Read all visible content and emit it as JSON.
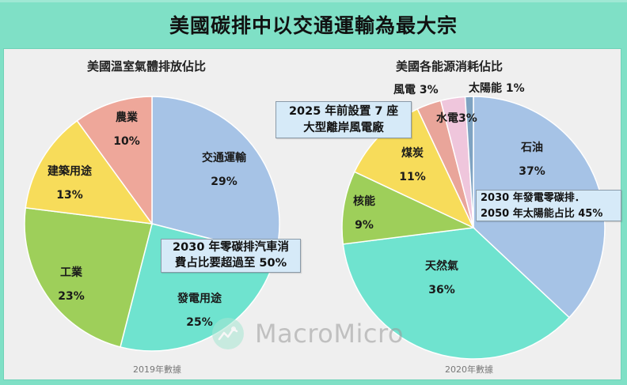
{
  "header": {
    "title": "美國碳排中以交通運輸為最大宗"
  },
  "chart_data": [
    {
      "type": "pie",
      "title": "美國溫室氣體排放佔比",
      "footnote": "2019年數據",
      "start_angle_deg": 0,
      "direction": "clockwise",
      "categories": [
        "交通運輸",
        "發電用途",
        "工業",
        "建築用途",
        "農業"
      ],
      "values": [
        29,
        25,
        23,
        13,
        10
      ],
      "colors": [
        "#a6c3e6",
        "#6fe3cf",
        "#9ecf5a",
        "#f7dc5a",
        "#eea79a"
      ],
      "labels": [
        "29%",
        "25%",
        "23%",
        "13%",
        "10%"
      ],
      "annotation": "2030 年零碳排汽車消\n費占比要超過至 50%"
    },
    {
      "type": "pie",
      "title": "美國各能源消耗佔比",
      "footnote": "2020年數據",
      "start_angle_deg": 0,
      "direction": "clockwise",
      "categories": [
        "石油",
        "天然氣",
        "核能",
        "煤炭",
        "風電",
        "水電",
        "太陽能"
      ],
      "values": [
        37,
        36,
        9,
        11,
        3,
        3,
        1
      ],
      "colors": [
        "#a6c3e6",
        "#6fe3cf",
        "#9ecf5a",
        "#f7dc5a",
        "#e9a59a",
        "#efc6dc",
        "#7fa3c2"
      ],
      "labels": [
        "37%",
        "36%",
        "9%",
        "11%",
        "3%",
        "3%",
        "1%"
      ],
      "annotations": [
        "2025 年前設置 7 座\n大型離岸風電廠",
        "2030 年發電零碳排．\n2050 年太陽能占比 45%"
      ]
    }
  ],
  "left": {
    "title": "美國溫室氣體排放佔比",
    "footnote": "2019年數據",
    "labels": {
      "transport": {
        "name": "交通運輸",
        "pct": "29%"
      },
      "power": {
        "name": "發電用途",
        "pct": "25%"
      },
      "industry": {
        "name": "工業",
        "pct": "23%"
      },
      "building": {
        "name": "建築用途",
        "pct": "13%"
      },
      "agriculture": {
        "name": "農業",
        "pct": "10%"
      }
    },
    "note_line1": "2030 年零碳排汽車消",
    "note_line2": "費占比要超過至 50%"
  },
  "right": {
    "title": "美國各能源消耗佔比",
    "footnote": "2020年數據",
    "labels": {
      "oil": {
        "name": "石油",
        "pct": "37%"
      },
      "gas": {
        "name": "天然氣",
        "pct": "36%"
      },
      "nuclear": {
        "name": "核能",
        "pct": "9%"
      },
      "coal": {
        "name": "煤炭",
        "pct": "11%"
      },
      "wind": "風電 3%",
      "hydro": "水電3%",
      "solar": "太陽能 1%"
    },
    "note1_line1": "2025 年前設置 7 座",
    "note1_line2": "大型離岸風電廠",
    "note2_line1": "2030 年發電零碳排．",
    "note2_line2": "2050 年太陽能占比 45%"
  },
  "watermark": {
    "text": "MacroMicro",
    "logo": "chart-line-logo-icon"
  }
}
